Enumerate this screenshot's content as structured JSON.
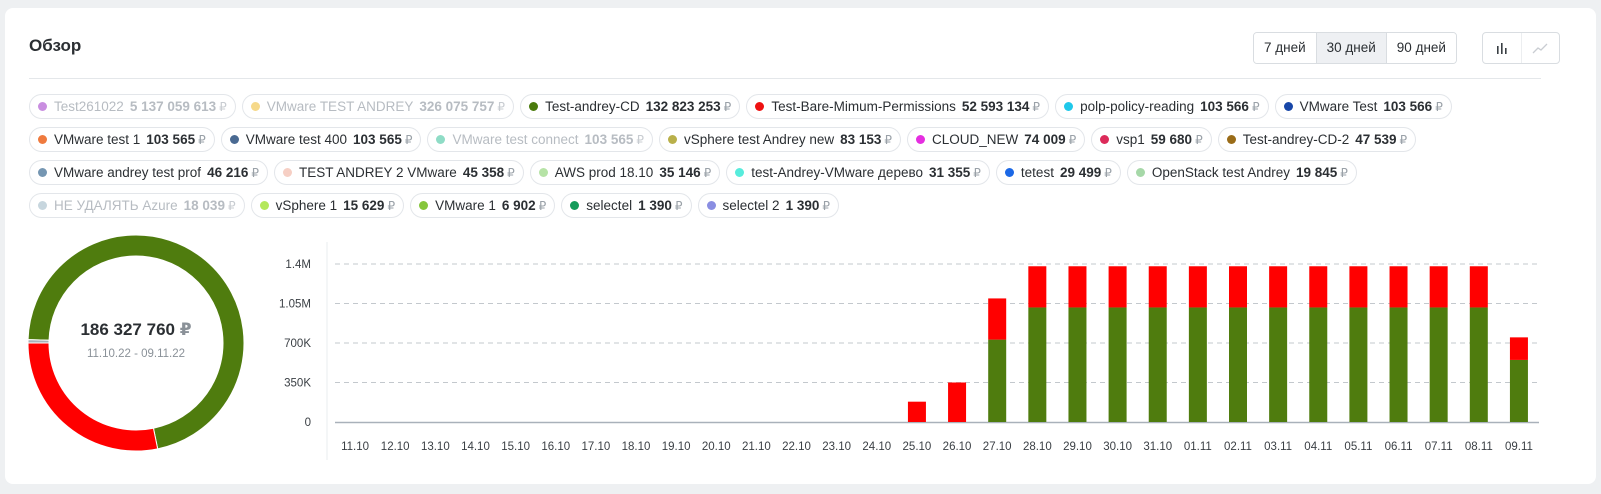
{
  "header": {
    "title": "Обзор",
    "ranges": [
      {
        "label": "7 дней",
        "active": false
      },
      {
        "label": "30 дней",
        "active": true
      },
      {
        "label": "90 дней",
        "active": false
      }
    ],
    "view_icons": [
      "bar-chart-icon",
      "line-chart-icon"
    ]
  },
  "currency": "₽",
  "legend": [
    {
      "name": "Test261022",
      "value": "5 137 059 613",
      "color": "#c98ee0",
      "active": false
    },
    {
      "name": "VMware TEST ANDREY",
      "value": "326 075 757",
      "color": "#f6d98a",
      "active": false
    },
    {
      "name": "Test-andrey-CD",
      "value": "132 823 253",
      "color": "#4a7b0c",
      "active": true
    },
    {
      "name": "Test-Bare-Mimum-Permissions",
      "value": "52 593 134",
      "color": "#ee1111",
      "active": true
    },
    {
      "name": "polp-policy-reading",
      "value": "103 566",
      "color": "#1fc8ea",
      "active": true
    },
    {
      "name": "VMware Test",
      "value": "103 566",
      "color": "#1847a8",
      "active": true
    },
    {
      "name": "VMware test 1",
      "value": "103 565",
      "color": "#ef7a3e",
      "active": true
    },
    {
      "name": "VMware test 400",
      "value": "103 565",
      "color": "#4a6a92",
      "active": true
    },
    {
      "name": "VMware test connect",
      "value": "103 565",
      "color": "#8fdcc6",
      "active": false
    },
    {
      "name": "vSphere test Andrey new",
      "value": "83 153",
      "color": "#b9b04a",
      "active": true
    },
    {
      "name": "CLOUD_NEW",
      "value": "74 009",
      "color": "#e52ee0",
      "active": true
    },
    {
      "name": "vsp1",
      "value": "59 680",
      "color": "#dc2b5a",
      "active": true
    },
    {
      "name": "Test-andrey-CD-2",
      "value": "47 539",
      "color": "#9a6c18",
      "active": true
    },
    {
      "name": "VMware andrey test prof",
      "value": "46 216",
      "color": "#7596b2",
      "active": true
    },
    {
      "name": "TEST ANDREY 2 VMware",
      "value": "45 358",
      "color": "#f6cfc4",
      "active": true
    },
    {
      "name": "AWS prod 18.10",
      "value": "35 146",
      "color": "#b6e3a6",
      "active": true
    },
    {
      "name": "test-Andrey-VMware дерево",
      "value": "31 355",
      "color": "#57ecdc",
      "active": true
    },
    {
      "name": "tetest",
      "value": "29 499",
      "color": "#1b68e6",
      "active": true
    },
    {
      "name": "OpenStack test Andrey",
      "value": "19 845",
      "color": "#a6d8a8",
      "active": true
    },
    {
      "name": "НЕ УДАЛЯТЬ Azure",
      "value": "18 039",
      "color": "#c7d6de",
      "active": false
    },
    {
      "name": "vSphere 1",
      "value": "15 629",
      "color": "#b4e85c",
      "active": true
    },
    {
      "name": "VMware 1",
      "value": "6 902",
      "color": "#86c63c",
      "active": true
    },
    {
      "name": "selectel",
      "value": "1 390",
      "color": "#159c5b",
      "active": true
    },
    {
      "name": "selectel 2",
      "value": "1 390",
      "color": "#8a8ee2",
      "active": true
    }
  ],
  "donut": {
    "total": "186 327 760",
    "period": "11.10.22 - 09.11.22",
    "segments": [
      {
        "name": "Test-andrey-CD",
        "value": 132823253,
        "color": "#4f7c0e"
      },
      {
        "name": "Test-Bare-Mimum-Permissions",
        "value": 52593134,
        "color": "#ff0000"
      },
      {
        "name": "other",
        "value": 911373,
        "color": "#a9b1ba"
      }
    ]
  },
  "chart_data": {
    "type": "bar",
    "stacked": true,
    "categories": [
      "11.10",
      "12.10",
      "13.10",
      "14.10",
      "15.10",
      "16.10",
      "17.10",
      "18.10",
      "19.10",
      "20.10",
      "21.10",
      "22.10",
      "23.10",
      "24.10",
      "25.10",
      "26.10",
      "27.10",
      "28.10",
      "29.10",
      "30.10",
      "31.10",
      "01.11",
      "02.11",
      "03.11",
      "04.11",
      "05.11",
      "06.11",
      "07.11",
      "08.11",
      "09.11"
    ],
    "series": [
      {
        "name": "Test-andrey-CD",
        "color": "#4f7c0e",
        "values": [
          0,
          0,
          0,
          0,
          0,
          0,
          0,
          0,
          0,
          0,
          0,
          0,
          0,
          0,
          0,
          0,
          730000,
          1015000,
          1015000,
          1015000,
          1015000,
          1015000,
          1015000,
          1015000,
          1015000,
          1015000,
          1015000,
          1015000,
          1015000,
          550000
        ]
      },
      {
        "name": "Test-Bare-Mimum-Permissions",
        "color": "#ff0000",
        "values": [
          0,
          0,
          0,
          0,
          0,
          0,
          0,
          0,
          0,
          0,
          0,
          0,
          0,
          0,
          180000,
          350000,
          365000,
          365000,
          365000,
          365000,
          365000,
          365000,
          365000,
          365000,
          365000,
          365000,
          365000,
          365000,
          365000,
          200000
        ]
      }
    ],
    "yticks": [
      {
        "value": 0,
        "label": "0"
      },
      {
        "value": 350000,
        "label": "350K"
      },
      {
        "value": 700000,
        "label": "700K"
      },
      {
        "value": 1050000,
        "label": "1.05M"
      },
      {
        "value": 1400000,
        "label": "1.4M"
      }
    ],
    "ylim": [
      0,
      1400000
    ],
    "grid": true,
    "legend": "top"
  }
}
